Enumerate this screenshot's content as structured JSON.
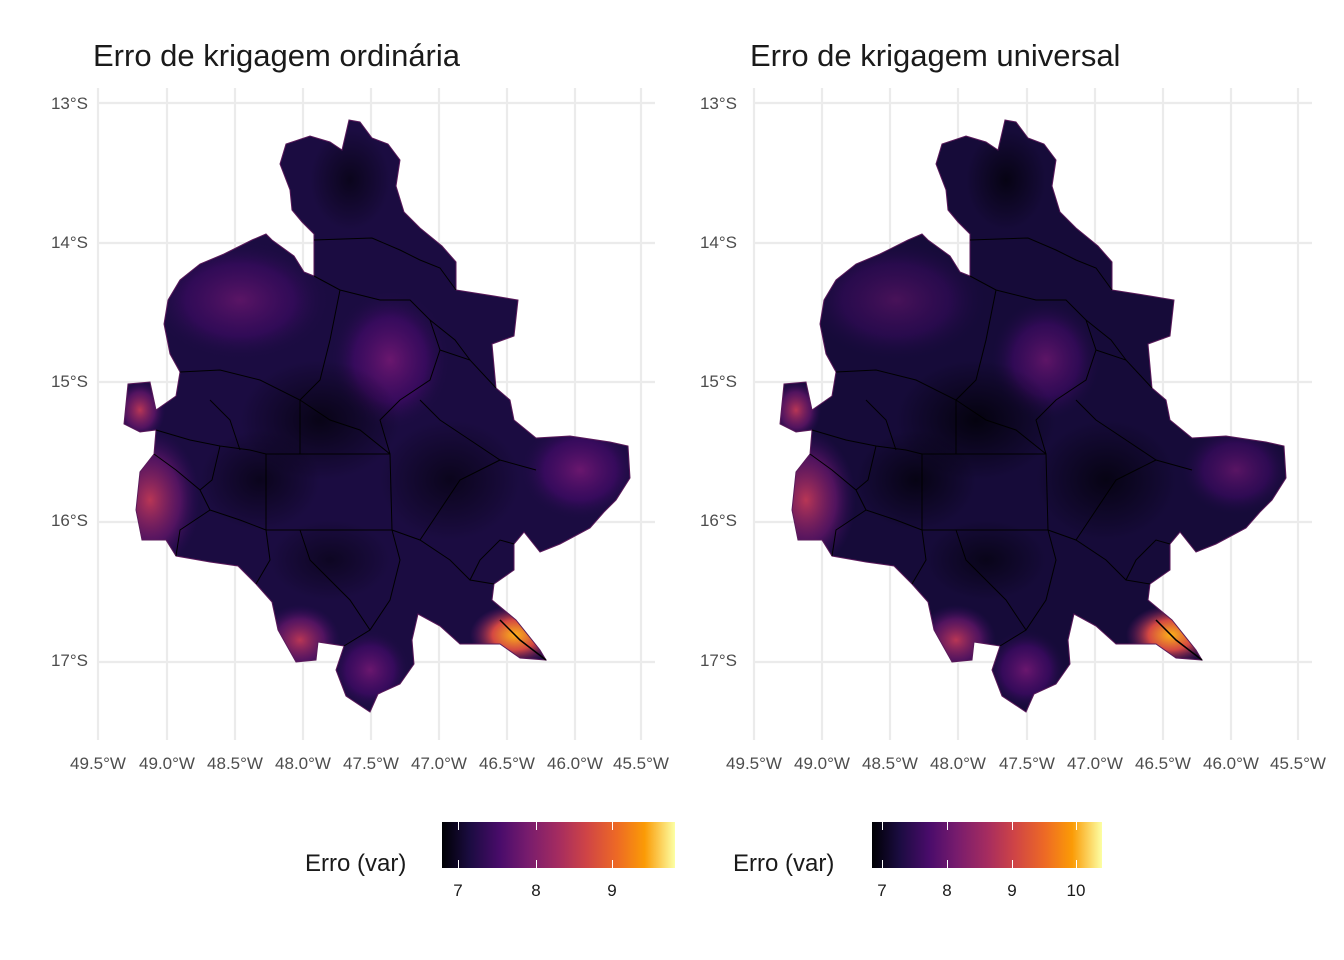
{
  "panels": [
    {
      "title": "Erro de krigagem ordinária",
      "lat_labels": [
        "13°S",
        "14°S",
        "15°S",
        "16°S",
        "17°S"
      ],
      "lon_labels": [
        "49.5°W",
        "49.0°W",
        "48.5°W",
        "48.0°W",
        "47.5°W",
        "47.0°W",
        "46.5°W",
        "46.0°W",
        "45.5°W"
      ],
      "legend": {
        "title": "Erro (var)",
        "ticks": [
          "7",
          "8",
          "9"
        ],
        "colormap": "inferno",
        "range": [
          6.8,
          9.8
        ]
      }
    },
    {
      "title": "Erro de krigagem universal",
      "lat_labels": [
        "13°S",
        "14°S",
        "15°S",
        "16°S",
        "17°S"
      ],
      "lon_labels": [
        "49.5°W",
        "49.0°W",
        "48.5°W",
        "48.0°W",
        "47.5°W",
        "47.0°W",
        "46.5°W",
        "46.0°W",
        "45.5°W"
      ],
      "legend": {
        "title": "Erro (var)",
        "ticks": [
          "7",
          "8",
          "9",
          "10"
        ],
        "colormap": "inferno",
        "range": [
          6.85,
          10.4
        ]
      }
    }
  ],
  "colors": {
    "background": "#ffffff",
    "gridlines": "#ebebeb",
    "boundary": "#000000",
    "inferno_low": "#000004",
    "inferno_mid": "#7a2882",
    "inferno_high": "#fcffa4"
  }
}
